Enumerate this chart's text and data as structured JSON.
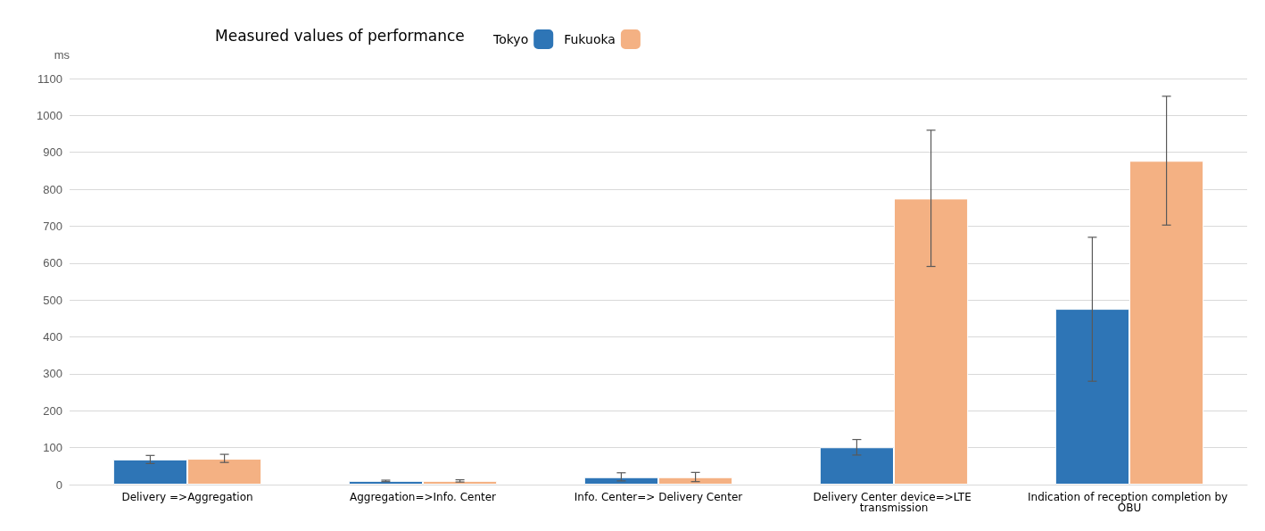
{
  "chart_data": {
    "type": "bar",
    "title": "Measured values of performance",
    "ylabel": "ms",
    "categories": [
      "Delivery =>Aggregation",
      "Aggregation=>Info. Center",
      "Info. Center=> Delivery Center",
      "Delivery Center device=>LTE transmission",
      "Indication of reception completion by OBU"
    ],
    "series": [
      {
        "name": "Tokyo",
        "color": "#2e75b6",
        "values": [
          68,
          10,
          20,
          101,
          476
        ],
        "errors": [
          [
            57,
            79
          ],
          [
            8,
            12
          ],
          [
            10,
            32
          ],
          [
            80,
            122
          ],
          [
            280,
            670
          ]
        ]
      },
      {
        "name": "Fukuoka",
        "color": "#f4b183",
        "values": [
          70,
          10,
          20,
          775,
          877
        ],
        "errors": [
          [
            60,
            82
          ],
          [
            7,
            13
          ],
          [
            8,
            33
          ],
          [
            591,
            960
          ],
          [
            703,
            1052
          ]
        ]
      }
    ],
    "ylim": [
      0,
      1100
    ],
    "yticks": [
      0,
      100,
      200,
      300,
      400,
      500,
      600,
      700,
      800,
      900,
      1000,
      1100
    ],
    "grid": "y",
    "legend": "top"
  }
}
